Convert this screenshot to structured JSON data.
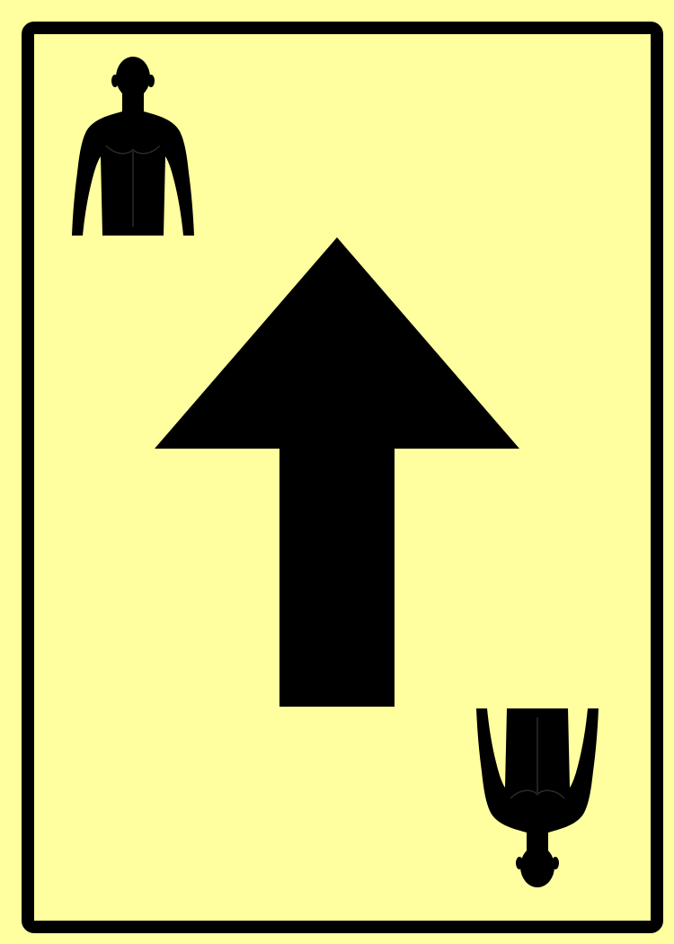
{
  "card": {
    "type": "direction-card",
    "direction": "up",
    "background_color": "#ffff9f",
    "border_color": "#000000",
    "symbol_color": "#000000"
  },
  "icons": {
    "corner_figure": "person-silhouette-icon",
    "center_symbol": "arrow-up-icon"
  }
}
